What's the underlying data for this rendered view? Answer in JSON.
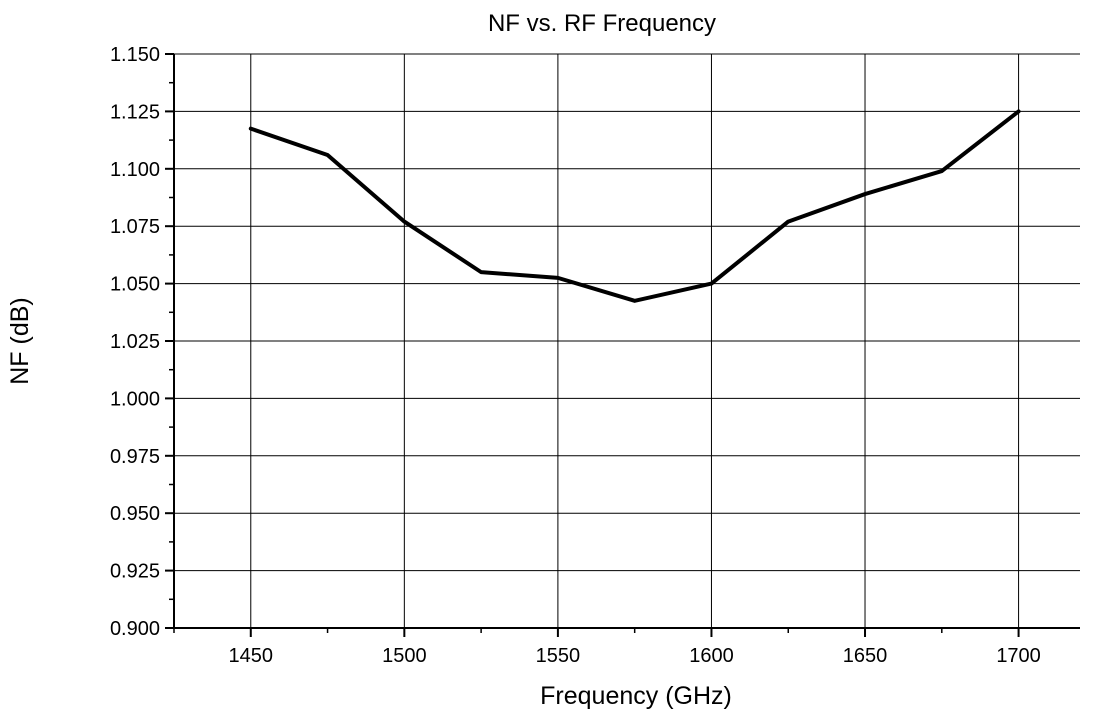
{
  "chart_data": {
    "type": "line",
    "title": "NF vs. RF Frequency",
    "xlabel": "Frequency (GHz)",
    "ylabel": "NF (dB)",
    "xlim": [
      1425,
      1720
    ],
    "ylim": [
      0.9,
      1.15
    ],
    "xticks": [
      "1450",
      "1500",
      "1550",
      "1600",
      "1650",
      "1700"
    ],
    "yticks": [
      "0.900",
      "0.925",
      "0.950",
      "0.975",
      "1.000",
      "1.025",
      "1.050",
      "1.075",
      "1.100",
      "1.125",
      "1.150"
    ],
    "grid": true,
    "colors": {
      "line": "#000000",
      "grid": "#000000",
      "background": "#ffffff"
    },
    "series": [
      {
        "x": [
          1450,
          1475,
          1500,
          1525,
          1550,
          1575,
          1600,
          1625,
          1650,
          1675,
          1700
        ],
        "y": [
          1.1175,
          1.106,
          1.077,
          1.055,
          1.0525,
          1.0425,
          1.05,
          1.077,
          1.089,
          1.099,
          1.125
        ]
      }
    ]
  }
}
